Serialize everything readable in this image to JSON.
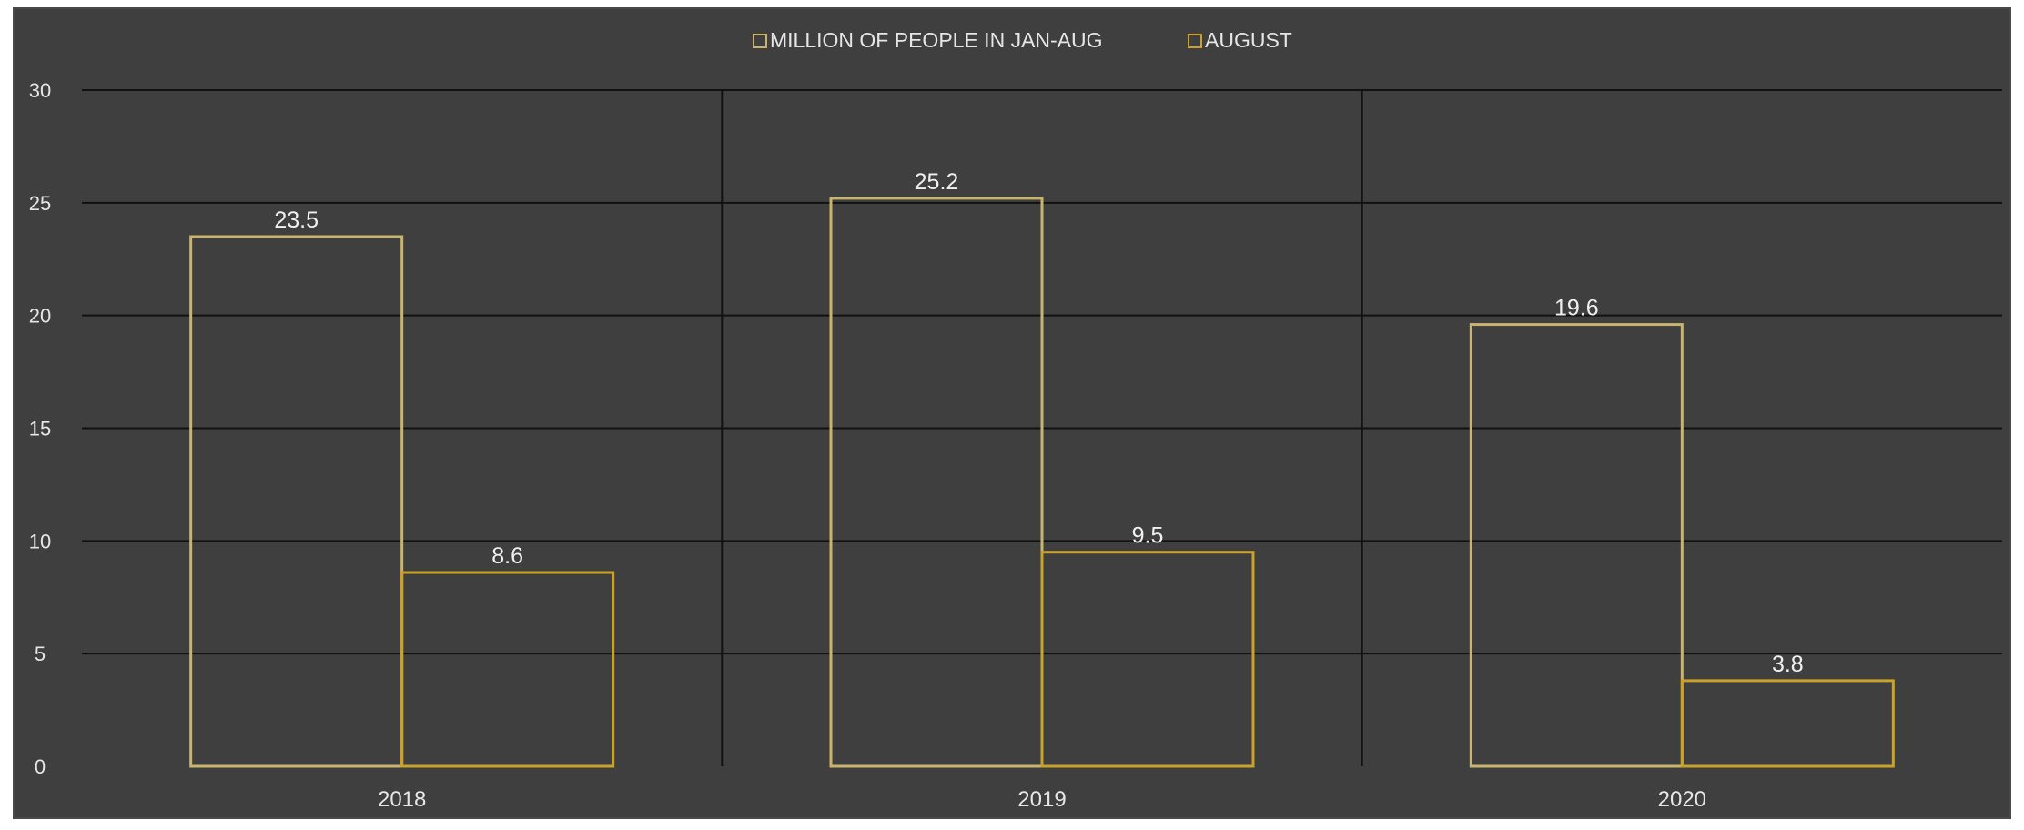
{
  "chart_data": {
    "type": "bar",
    "categories": [
      "2018",
      "2019",
      "2020"
    ],
    "series": [
      {
        "name": "MILLION OF PEOPLE IN JAN-AUG",
        "values": [
          23.5,
          25.2,
          19.6
        ],
        "color": "#c8b46e"
      },
      {
        "name": "AUGUST",
        "values": [
          8.6,
          9.5,
          3.8
        ],
        "color": "#c9a227"
      }
    ],
    "data_labels": [
      [
        "23.5",
        "25.2",
        "19.6"
      ],
      [
        "8.6",
        "9.5",
        "3.8"
      ]
    ],
    "ylim": [
      0,
      30
    ],
    "yticks": [
      0,
      5,
      10,
      15,
      20,
      25,
      30
    ],
    "grid": true,
    "legend": "top-center",
    "background": "#3f3f3f",
    "gridline_color": "#111111",
    "text_color": "#e6e6e6"
  }
}
